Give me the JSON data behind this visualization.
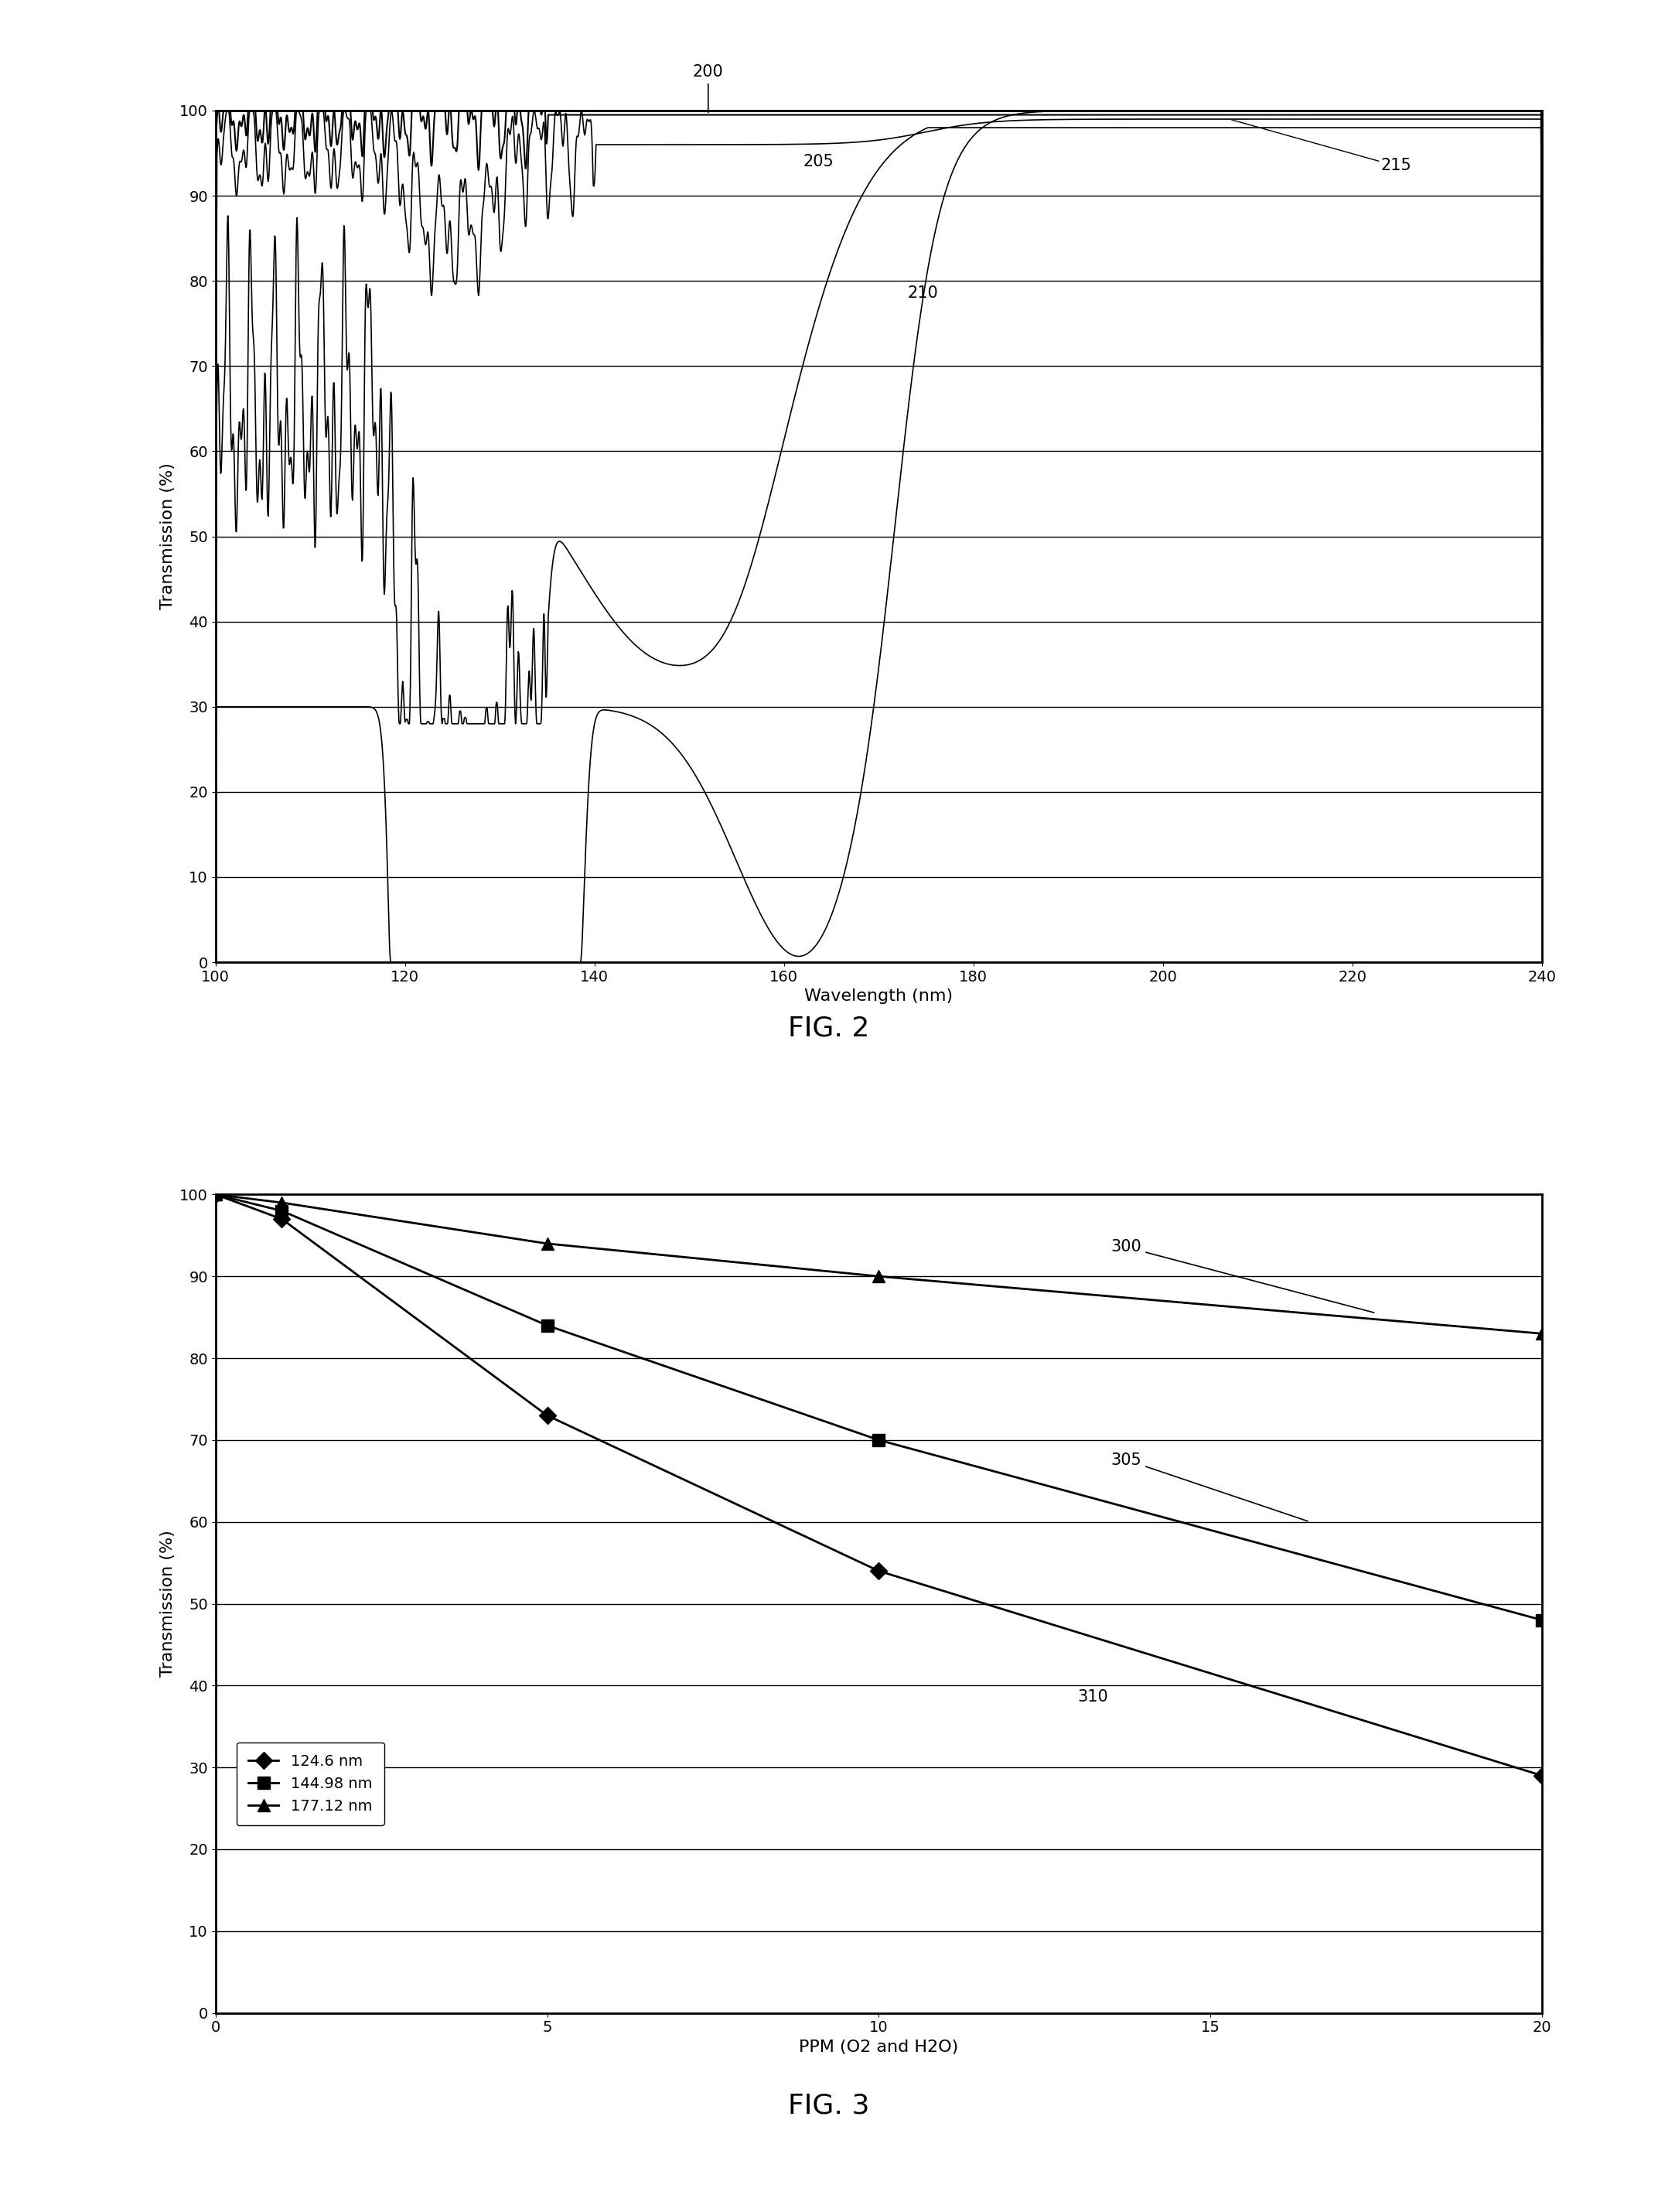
{
  "fig2": {
    "xlabel": "Wavelength (nm)",
    "ylabel": "Transmission (%)",
    "xlim": [
      100,
      240
    ],
    "ylim": [
      0,
      100
    ],
    "yticks": [
      0,
      10,
      20,
      30,
      40,
      50,
      60,
      70,
      80,
      90,
      100
    ],
    "xticks": [
      100,
      120,
      140,
      160,
      180,
      200,
      220,
      240
    ]
  },
  "fig3": {
    "xlabel": "PPM (O2 and H2O)",
    "ylabel": "Transmission (%)",
    "xlim": [
      0,
      20
    ],
    "ylim": [
      0,
      100
    ],
    "yticks": [
      0,
      10,
      20,
      30,
      40,
      50,
      60,
      70,
      80,
      90,
      100
    ],
    "xticks": [
      0,
      5,
      10,
      15,
      20
    ],
    "series": {
      "124.6 nm": {
        "x": [
          0,
          1,
          5,
          10,
          20
        ],
        "y": [
          100,
          97,
          73,
          54,
          29
        ]
      },
      "144.98 nm": {
        "x": [
          0,
          1,
          5,
          10,
          20
        ],
        "y": [
          100,
          98,
          84,
          70,
          48
        ]
      },
      "177.12 nm": {
        "x": [
          0,
          1,
          5,
          10,
          20
        ],
        "y": [
          100,
          99,
          94,
          90,
          83
        ]
      }
    }
  },
  "fig2_label": "FIG. 2",
  "fig3_label": "FIG. 3",
  "font_size_axis_label": 16,
  "font_size_tick": 14,
  "font_size_annot": 15,
  "font_size_fig_label": 26,
  "line_color": "#000000",
  "background_color": "#ffffff"
}
